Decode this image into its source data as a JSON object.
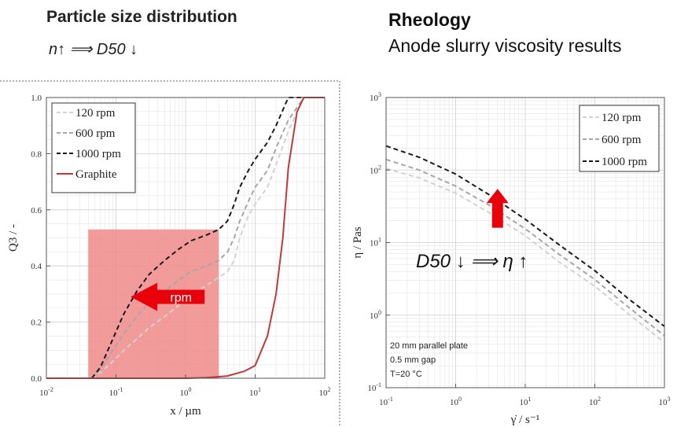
{
  "left": {
    "title": "Particle size distribution",
    "subtitle": "n↑ ⟹ D50 ↓"
  },
  "right": {
    "title": "Rheology",
    "subtitle": "Anode slurry viscosity results"
  },
  "colors": {
    "highlight": "#f08a8a",
    "arrow": "#e8000b",
    "graphite": "#c0393b",
    "grid": "#e4e4e4"
  },
  "chart_data": [
    {
      "type": "line",
      "xscale": "log",
      "xlabel": "x / µm",
      "ylabel": "Q3 / -",
      "xlim": [
        0.01,
        100
      ],
      "ylim": [
        0,
        1
      ],
      "xticks": [
        0.01,
        0.1,
        1,
        10,
        100
      ],
      "xtick_labels": [
        {
          "base": "10",
          "exp": "-2"
        },
        {
          "base": "10",
          "exp": "-1"
        },
        {
          "base": "10",
          "exp": "0"
        },
        {
          "base": "10",
          "exp": "1"
        },
        {
          "base": "10",
          "exp": "2"
        }
      ],
      "yticks": [
        "0.0",
        "0.2",
        "0.4",
        "0.6",
        "0.8",
        "1.0"
      ],
      "grid": true,
      "legend_position": "top-left",
      "series": [
        {
          "name": "120 rpm",
          "style": "dashed",
          "color": "#d2d2d2",
          "x": [
            0.045,
            0.06,
            0.09,
            0.13,
            0.2,
            0.3,
            0.5,
            0.8,
            1.2,
            2,
            3,
            4,
            5,
            6,
            8,
            10,
            15,
            20,
            30,
            50,
            70,
            100
          ],
          "y": [
            0,
            0.02,
            0.06,
            0.1,
            0.14,
            0.18,
            0.22,
            0.26,
            0.3,
            0.33,
            0.36,
            0.38,
            0.42,
            0.5,
            0.58,
            0.62,
            0.68,
            0.76,
            0.88,
            1,
            1,
            1
          ]
        },
        {
          "name": "600 rpm",
          "style": "dashed",
          "color": "#a6a6a6",
          "x": [
            0.045,
            0.06,
            0.09,
            0.13,
            0.2,
            0.3,
            0.5,
            0.8,
            1.2,
            2,
            3,
            4,
            5,
            6,
            8,
            10,
            15,
            20,
            30,
            50,
            70,
            100
          ],
          "y": [
            0,
            0.03,
            0.1,
            0.16,
            0.22,
            0.27,
            0.31,
            0.35,
            0.38,
            0.4,
            0.42,
            0.45,
            0.5,
            0.56,
            0.63,
            0.68,
            0.74,
            0.82,
            0.92,
            1,
            1,
            1
          ]
        },
        {
          "name": "1000 rpm",
          "style": "dashed",
          "color": "#1a1a1a",
          "x": [
            0.045,
            0.06,
            0.09,
            0.13,
            0.2,
            0.3,
            0.5,
            0.8,
            1.2,
            2,
            3,
            4,
            5,
            6,
            8,
            10,
            15,
            20,
            30,
            50,
            70,
            100
          ],
          "y": [
            0,
            0.04,
            0.14,
            0.23,
            0.31,
            0.37,
            0.42,
            0.46,
            0.49,
            0.51,
            0.53,
            0.56,
            0.62,
            0.68,
            0.74,
            0.78,
            0.84,
            0.9,
            1,
            1,
            1,
            1
          ]
        },
        {
          "name": "Graphite",
          "style": "solid",
          "color": "#c0393b",
          "x": [
            0.01,
            0.1,
            1,
            2,
            4,
            7,
            10,
            15,
            20,
            25,
            30,
            40,
            50,
            60,
            70,
            100
          ],
          "y": [
            0,
            0,
            0,
            0.002,
            0.008,
            0.025,
            0.045,
            0.15,
            0.3,
            0.5,
            0.75,
            0.95,
            1,
            1,
            1,
            1
          ]
        }
      ],
      "annotations": [
        {
          "type": "shaded-region",
          "x_range": [
            0.04,
            3
          ],
          "y_range": [
            0,
            0.53
          ]
        },
        {
          "type": "arrow",
          "direction": "left",
          "text": "rpm",
          "x_range": [
            0.2,
            3
          ],
          "y": 0.29
        }
      ]
    },
    {
      "type": "line",
      "xscale": "log",
      "yscale": "log",
      "xlabel": "γ̇ / s⁻¹",
      "ylabel": "η / Pas",
      "xlim": [
        0.1,
        1000
      ],
      "ylim": [
        0.1,
        1000
      ],
      "tick_labels": [
        {
          "base": "10",
          "exp": "-1"
        },
        {
          "base": "10",
          "exp": "0"
        },
        {
          "base": "10",
          "exp": "1"
        },
        {
          "base": "10",
          "exp": "2"
        },
        {
          "base": "10",
          "exp": "3"
        }
      ],
      "grid": true,
      "legend_position": "top-right",
      "series": [
        {
          "name": "120 rpm",
          "style": "dashed",
          "color": "#d2d2d2",
          "x": [
            0.1,
            0.3,
            1,
            3,
            10,
            30,
            100,
            300,
            1000
          ],
          "y": [
            105,
            78,
            48,
            26,
            12.5,
            5.5,
            2.5,
            1.05,
            0.42
          ]
        },
        {
          "name": "600 rpm",
          "style": "dashed",
          "color": "#a6a6a6",
          "x": [
            0.1,
            0.3,
            1,
            3,
            10,
            30,
            100,
            300,
            1000
          ],
          "y": [
            140,
            100,
            60,
            33,
            15.5,
            7,
            3.1,
            1.3,
            0.52
          ]
        },
        {
          "name": "1000 rpm",
          "style": "dashed",
          "color": "#1a1a1a",
          "x": [
            0.1,
            0.3,
            1,
            3,
            10,
            30,
            100,
            300,
            1000
          ],
          "y": [
            215,
            150,
            88,
            46,
            21,
            9.5,
            4.1,
            1.7,
            0.7
          ]
        }
      ],
      "annotations": [
        {
          "type": "arrow",
          "direction": "up",
          "x": 4,
          "y_range": [
            16,
            55
          ]
        },
        {
          "type": "text",
          "text": "D50 ↓ ⟹ η ↑"
        },
        {
          "type": "text",
          "lines": [
            "20 mm parallel plate",
            "0.5 mm gap",
            "T=20 °C"
          ]
        }
      ]
    }
  ]
}
